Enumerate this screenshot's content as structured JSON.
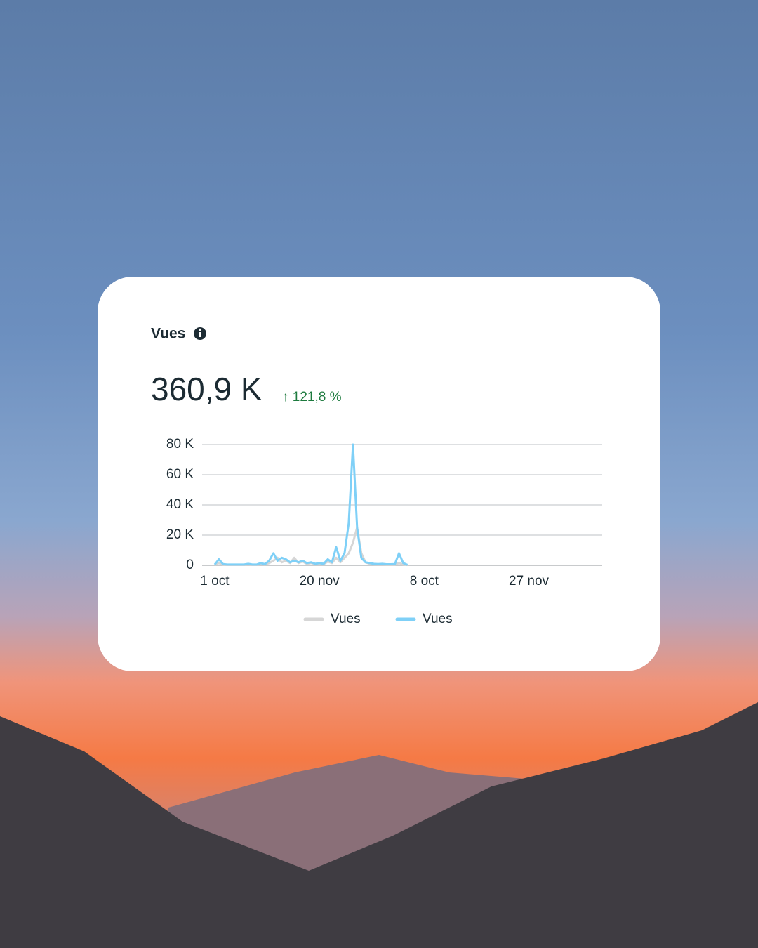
{
  "card": {
    "title": "Vues",
    "total": "360,9 K",
    "change": "↑ 121,8 %"
  },
  "chart_data": {
    "type": "line",
    "x": [
      0,
      2,
      4,
      6,
      8,
      10,
      12,
      14,
      16,
      18,
      20,
      22,
      24,
      26,
      28,
      30,
      32,
      34,
      36,
      38,
      40,
      42,
      44,
      46,
      48,
      50,
      52,
      54,
      56,
      58,
      60,
      62,
      64,
      66,
      68,
      70,
      72,
      74,
      76,
      78,
      80,
      82,
      84,
      86,
      88,
      90,
      92
    ],
    "xlim": [
      -6,
      185
    ],
    "xticks": [
      {
        "value": 0,
        "label": "1 oct"
      },
      {
        "value": 50,
        "label": "20 nov"
      },
      {
        "value": 100,
        "label": "8 oct"
      },
      {
        "value": 150,
        "label": "27 nov"
      }
    ],
    "ylim": [
      0,
      80000
    ],
    "yticks": [
      {
        "value": 0,
        "label": "0"
      },
      {
        "value": 20000,
        "label": "20 K"
      },
      {
        "value": 40000,
        "label": "40 K"
      },
      {
        "value": 60000,
        "label": "60 K"
      },
      {
        "value": 80000,
        "label": "80 K"
      }
    ],
    "grid": true,
    "series": [
      {
        "name": "Vues",
        "color": "#d6d6d6",
        "values": [
          300,
          1500,
          400,
          300,
          300,
          300,
          300,
          300,
          600,
          300,
          300,
          800,
          500,
          1500,
          3000,
          5000,
          2000,
          3000,
          1500,
          5000,
          1500,
          2500,
          1000,
          1500,
          800,
          1000,
          800,
          2500,
          1500,
          5000,
          2000,
          5000,
          8000,
          15000,
          25000,
          8000,
          2000,
          1000,
          600,
          500,
          500,
          400,
          400,
          400,
          1500,
          500,
          200
        ]
      },
      {
        "name": "Vues",
        "color": "#7fd0f7",
        "values": [
          500,
          4000,
          800,
          500,
          500,
          500,
          500,
          500,
          1000,
          500,
          500,
          1500,
          800,
          3000,
          8000,
          3000,
          5000,
          4000,
          2000,
          3000,
          2000,
          3000,
          1500,
          2000,
          1000,
          1500,
          1000,
          4000,
          2000,
          12000,
          3000,
          8000,
          28000,
          80000,
          25000,
          5000,
          2000,
          1500,
          1000,
          800,
          1000,
          700,
          700,
          800,
          8000,
          1500,
          300
        ]
      }
    ]
  }
}
